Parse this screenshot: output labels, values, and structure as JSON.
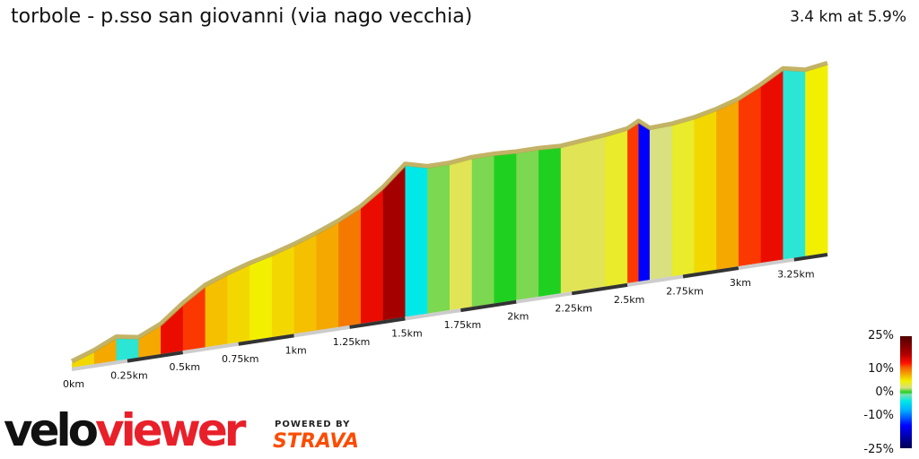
{
  "header": {
    "title": "torbole - p.sso san giovanni (via nago vecchia)",
    "summary": "3.4 km at 5.9%"
  },
  "chart_data": {
    "type": "area",
    "title": "torbole - p.sso san giovanni (via nago vecchia)",
    "distance_km": 3.4,
    "average_grade_pct": 5.9,
    "segments": [
      {
        "from": 0.0,
        "to": 0.1,
        "grade": 6
      },
      {
        "from": 0.1,
        "to": 0.2,
        "grade": 8
      },
      {
        "from": 0.2,
        "to": 0.3,
        "grade": -3
      },
      {
        "from": 0.3,
        "to": 0.4,
        "grade": 8
      },
      {
        "from": 0.4,
        "to": 0.5,
        "grade": 14
      },
      {
        "from": 0.5,
        "to": 0.6,
        "grade": 12
      },
      {
        "from": 0.6,
        "to": 0.7,
        "grade": 7
      },
      {
        "from": 0.7,
        "to": 0.8,
        "grade": 6
      },
      {
        "from": 0.8,
        "to": 0.9,
        "grade": 5
      },
      {
        "from": 0.9,
        "to": 1.0,
        "grade": 6
      },
      {
        "from": 1.0,
        "to": 1.1,
        "grade": 7
      },
      {
        "from": 1.1,
        "to": 1.2,
        "grade": 8
      },
      {
        "from": 1.2,
        "to": 1.3,
        "grade": 10
      },
      {
        "from": 1.3,
        "to": 1.4,
        "grade": 14
      },
      {
        "from": 1.4,
        "to": 1.5,
        "grade": 18
      },
      {
        "from": 1.5,
        "to": 1.6,
        "grade": -4
      },
      {
        "from": 1.6,
        "to": 1.7,
        "grade": 1
      },
      {
        "from": 1.7,
        "to": 1.8,
        "grade": 3
      },
      {
        "from": 1.8,
        "to": 1.9,
        "grade": 1
      },
      {
        "from": 1.9,
        "to": 2.0,
        "grade": 0
      },
      {
        "from": 2.0,
        "to": 2.1,
        "grade": 1
      },
      {
        "from": 2.1,
        "to": 2.2,
        "grade": 0
      },
      {
        "from": 2.2,
        "to": 2.3,
        "grade": 3
      },
      {
        "from": 2.3,
        "to": 2.4,
        "grade": 3
      },
      {
        "from": 2.4,
        "to": 2.5,
        "grade": 4
      },
      {
        "from": 2.5,
        "to": 2.55,
        "grade": 12
      },
      {
        "from": 2.55,
        "to": 2.6,
        "grade": -15
      },
      {
        "from": 2.6,
        "to": 2.7,
        "grade": 2
      },
      {
        "from": 2.7,
        "to": 2.8,
        "grade": 4
      },
      {
        "from": 2.8,
        "to": 2.9,
        "grade": 6
      },
      {
        "from": 2.9,
        "to": 3.0,
        "grade": 8
      },
      {
        "from": 3.0,
        "to": 3.1,
        "grade": 12
      },
      {
        "from": 3.1,
        "to": 3.2,
        "grade": 14
      },
      {
        "from": 3.2,
        "to": 3.3,
        "grade": -3
      },
      {
        "from": 3.3,
        "to": 3.4,
        "grade": 5
      }
    ],
    "x_ticks": [
      "0km",
      "0.25km",
      "0.5km",
      "0.75km",
      "1km",
      "1.25km",
      "1.5km",
      "1.75km",
      "2km",
      "2.25km",
      "2.5km",
      "2.75km",
      "3km",
      "3.25km"
    ],
    "legend": {
      "labels": [
        "25%",
        "10%",
        "0%",
        "-10%",
        "-25%"
      ]
    },
    "color_scale": [
      [
        -25,
        "#000050"
      ],
      [
        -15,
        "#0000ff"
      ],
      [
        -8,
        "#00b0ff"
      ],
      [
        -4,
        "#00e8e8"
      ],
      [
        -1,
        "#80e0b0"
      ],
      [
        0,
        "#20d020"
      ],
      [
        2,
        "#d8e080"
      ],
      [
        5,
        "#f2f000"
      ],
      [
        8,
        "#f5a800"
      ],
      [
        11,
        "#f56000"
      ],
      [
        13,
        "#ff1000"
      ],
      [
        17,
        "#b00000"
      ],
      [
        25,
        "#500000"
      ]
    ]
  },
  "branding": {
    "logo_a": "velo",
    "logo_b": "viewer",
    "powered_by": "POWERED BY",
    "strava": "STRAVA"
  }
}
